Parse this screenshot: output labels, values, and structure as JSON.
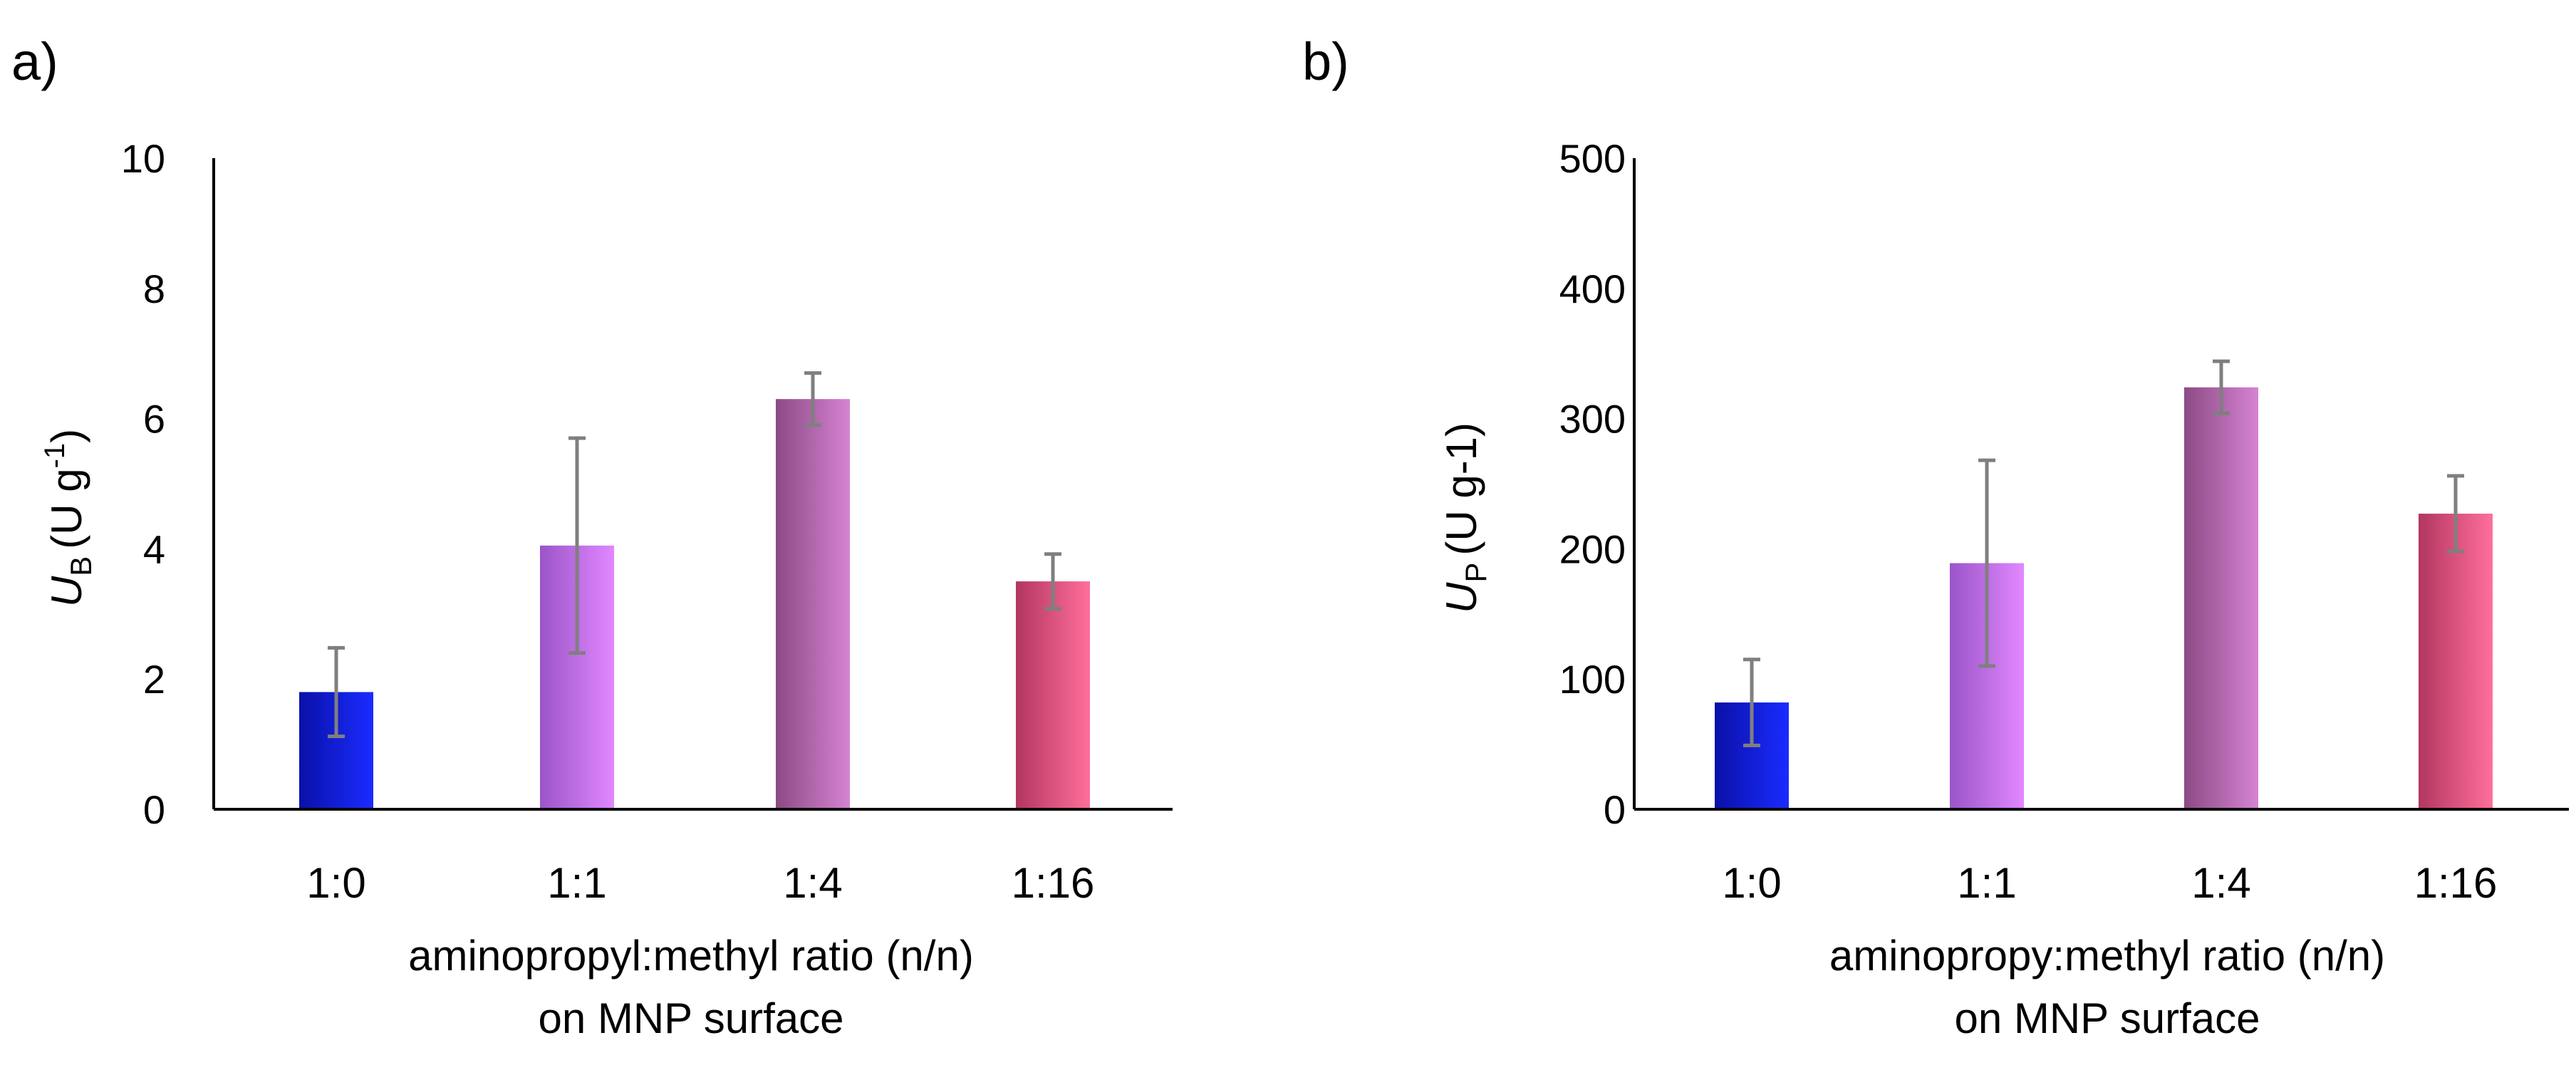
{
  "chart_data": [
    {
      "type": "bar",
      "panel_label": "a)",
      "categories": [
        "1:0",
        "1:1",
        "1:4",
        "1:16"
      ],
      "values": [
        1.8,
        4.05,
        6.3,
        3.5
      ],
      "errors": [
        0.68,
        1.65,
        0.4,
        0.42
      ],
      "bar_colors": [
        [
          "#0a10a8",
          "#1a2cff"
        ],
        [
          "#9a55c8",
          "#e287ff"
        ],
        [
          "#8c4a84",
          "#d683d3"
        ],
        [
          "#b23660",
          "#ff6f9b"
        ]
      ],
      "ylim": [
        0,
        10
      ],
      "yticks": [
        "0",
        "2",
        "4",
        "6",
        "8",
        "10"
      ],
      "ylabel": {
        "main": "U",
        "sub": "B",
        "unit": "(U g",
        "sup": "-1",
        "close": ")"
      },
      "xlabel_lines": [
        "aminopropyl:methyl ratio (n/n)",
        "on MNP surface"
      ]
    },
    {
      "type": "bar",
      "panel_label": "b)",
      "categories": [
        "1:0",
        "1:1",
        "1:4",
        "1:16"
      ],
      "values": [
        82,
        189,
        324,
        227
      ],
      "errors": [
        33,
        79,
        20,
        29
      ],
      "bar_colors": [
        [
          "#0a10a8",
          "#1a2cff"
        ],
        [
          "#9a55c8",
          "#e287ff"
        ],
        [
          "#8c4a84",
          "#d683d3"
        ],
        [
          "#b23660",
          "#ff6f9b"
        ]
      ],
      "ylim": [
        0,
        500
      ],
      "yticks": [
        "0",
        "100",
        "200",
        "300",
        "400",
        "500"
      ],
      "ylabel": {
        "main": "U",
        "sub": "P",
        "unit": "(U g-1)",
        "sup": "",
        "close": ""
      },
      "xlabel_lines": [
        "aminopropy:methyl ratio (n/n)",
        "on MNP surface"
      ]
    }
  ]
}
